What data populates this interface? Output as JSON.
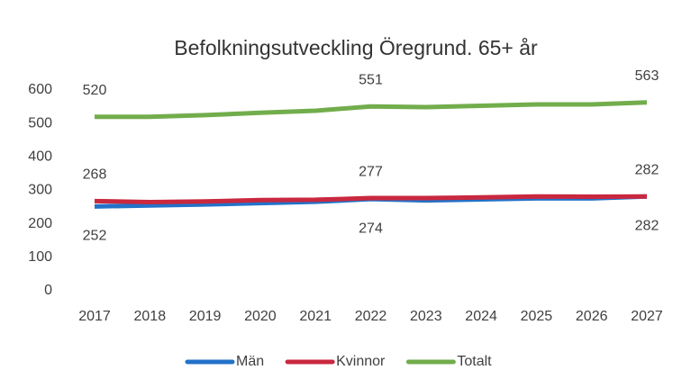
{
  "chart_data": {
    "type": "line",
    "title": "Befolkningsutveckling Öregrund. 65+ år",
    "categories": [
      "2017",
      "2018",
      "2019",
      "2020",
      "2021",
      "2022",
      "2023",
      "2024",
      "2025",
      "2026",
      "2027"
    ],
    "series": [
      {
        "name": "Män",
        "color": "#2372c8",
        "values": [
          252,
          255,
          258,
          262,
          266,
          274,
          270,
          273,
          276,
          276,
          282
        ]
      },
      {
        "name": "Kvinnor",
        "color": "#c9283f",
        "values": [
          268,
          265,
          267,
          271,
          272,
          277,
          277,
          279,
          282,
          281,
          282
        ]
      },
      {
        "name": "Totalt",
        "color": "#72ad4c",
        "values": [
          520,
          520,
          525,
          532,
          538,
          551,
          549,
          553,
          557,
          557,
          563
        ]
      }
    ],
    "ylim": [
      0,
      600
    ],
    "yticks": [
      0,
      100,
      200,
      300,
      400,
      500,
      600
    ],
    "grid": false,
    "legend": "bottom"
  }
}
